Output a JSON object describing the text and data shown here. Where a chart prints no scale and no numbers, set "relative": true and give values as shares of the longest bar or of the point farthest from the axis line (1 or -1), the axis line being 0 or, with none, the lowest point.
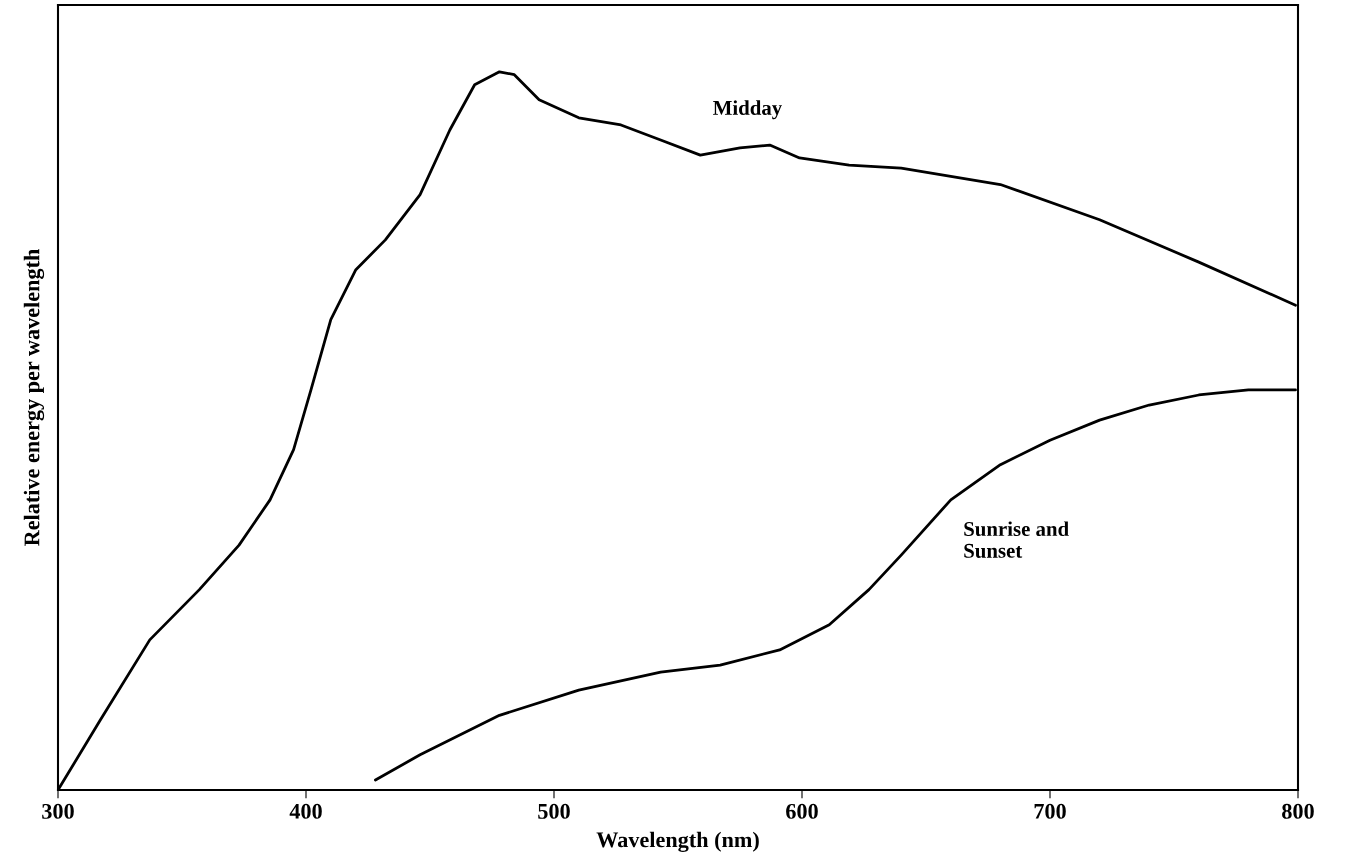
{
  "chart_data": {
    "type": "line",
    "relative": true,
    "xlabel": "Wavelength (nm)",
    "ylabel": "Relative energy per wavelength",
    "xlim": [
      300,
      800
    ],
    "xticks": [
      300,
      400,
      500,
      600,
      700,
      800
    ],
    "grid": false,
    "legend": false,
    "marker": "none",
    "line_style": "solid",
    "series": [
      {
        "name": "Midday",
        "color": "#000000",
        "x": [
          300,
          317,
          337,
          357,
          373,
          385.5,
          395,
          402,
          410,
          420,
          432,
          446,
          458,
          468,
          478,
          484,
          494,
          510,
          527,
          543,
          559,
          575,
          587,
          599,
          619,
          640,
          680,
          720,
          760,
          799
        ],
        "values": [
          0,
          0.097,
          0.209,
          0.279,
          0.341,
          0.404,
          0.474,
          0.557,
          0.655,
          0.724,
          0.766,
          0.829,
          0.919,
          0.982,
          1.0,
          0.996,
          0.961,
          0.936,
          0.926,
          0.905,
          0.884,
          0.894,
          0.898,
          0.88,
          0.87,
          0.866,
          0.843,
          0.794,
          0.735,
          0.675
        ]
      },
      {
        "name": "Sunrise and\nSunset",
        "color": "#000000",
        "x": [
          428,
          446,
          478,
          510,
          543,
          567,
          591,
          611,
          627,
          640,
          660,
          680,
          700,
          720,
          740,
          760,
          780,
          799
        ],
        "values": [
          0.014,
          0.049,
          0.104,
          0.139,
          0.164,
          0.174,
          0.195,
          0.23,
          0.279,
          0.327,
          0.404,
          0.453,
          0.487,
          0.515,
          0.536,
          0.55,
          0.557,
          0.557
        ]
      }
    ]
  }
}
